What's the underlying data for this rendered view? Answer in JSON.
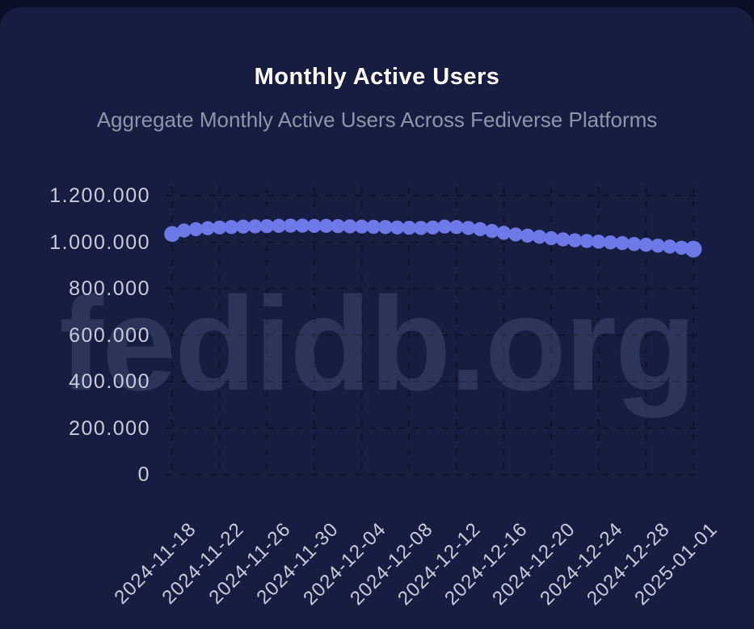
{
  "card": {
    "title": "Monthly Active Users",
    "subtitle": "Aggregate Monthly Active Users Across Fediverse Platforms",
    "watermark": "fedidb.org"
  },
  "colors": {
    "page_bg": "#0a0f28",
    "card_bg": "#161d41",
    "grid": "#0c1230",
    "dot": "#6c79e6",
    "title": "#ffffff",
    "subtitle": "#8e96ac",
    "axis_label": "#c7ccdc",
    "watermark": "rgba(165,175,215,0.16)"
  },
  "chart_data": {
    "type": "scatter",
    "title": "Monthly Active Users",
    "subtitle": "Aggregate Monthly Active Users Across Fediverse Platforms",
    "xlabel": "",
    "ylabel": "",
    "ylim": [
      0,
      1200000
    ],
    "grid": "dashed",
    "legend": "none",
    "y_ticks": [
      0,
      200000,
      400000,
      600000,
      800000,
      1000000,
      1200000
    ],
    "y_tick_labels": [
      "0",
      "200.000",
      "400.000",
      "600.000",
      "800.000",
      "1.000.000",
      "1.200.000"
    ],
    "x_tick_labels": [
      "2024-11-18",
      "2024-11-22",
      "2024-11-26",
      "2024-11-30",
      "2024-12-04",
      "2024-12-08",
      "2024-12-12",
      "2024-12-16",
      "2024-12-20",
      "2024-12-24",
      "2024-12-28",
      "2025-01-01"
    ],
    "x": [
      "2024-11-18",
      "2024-11-19",
      "2024-11-20",
      "2024-11-21",
      "2024-11-22",
      "2024-11-23",
      "2024-11-24",
      "2024-11-25",
      "2024-11-26",
      "2024-11-27",
      "2024-11-28",
      "2024-11-29",
      "2024-11-30",
      "2024-12-01",
      "2024-12-02",
      "2024-12-03",
      "2024-12-04",
      "2024-12-05",
      "2024-12-06",
      "2024-12-07",
      "2024-12-08",
      "2024-12-09",
      "2024-12-10",
      "2024-12-11",
      "2024-12-12",
      "2024-12-13",
      "2024-12-14",
      "2024-12-15",
      "2024-12-16",
      "2024-12-17",
      "2024-12-18",
      "2024-12-19",
      "2024-12-20",
      "2024-12-21",
      "2024-12-22",
      "2024-12-23",
      "2024-12-24",
      "2024-12-25",
      "2024-12-26",
      "2024-12-27",
      "2024-12-28",
      "2024-12-29",
      "2024-12-30",
      "2024-12-31",
      "2025-01-01"
    ],
    "series": [
      {
        "name": "Monthly Active Users",
        "values": [
          1035000,
          1050000,
          1056000,
          1060000,
          1063000,
          1065000,
          1067000,
          1068000,
          1069000,
          1070000,
          1071000,
          1071000,
          1070000,
          1070000,
          1069000,
          1068000,
          1067000,
          1066000,
          1065000,
          1063000,
          1062000,
          1061000,
          1063000,
          1067000,
          1065000,
          1061000,
          1056000,
          1048000,
          1040000,
          1033000,
          1028000,
          1023000,
          1017000,
          1012000,
          1008000,
          1005000,
          1002000,
          999000,
          996000,
          992000,
          989000,
          985000,
          981000,
          976000,
          970000
        ]
      }
    ]
  }
}
